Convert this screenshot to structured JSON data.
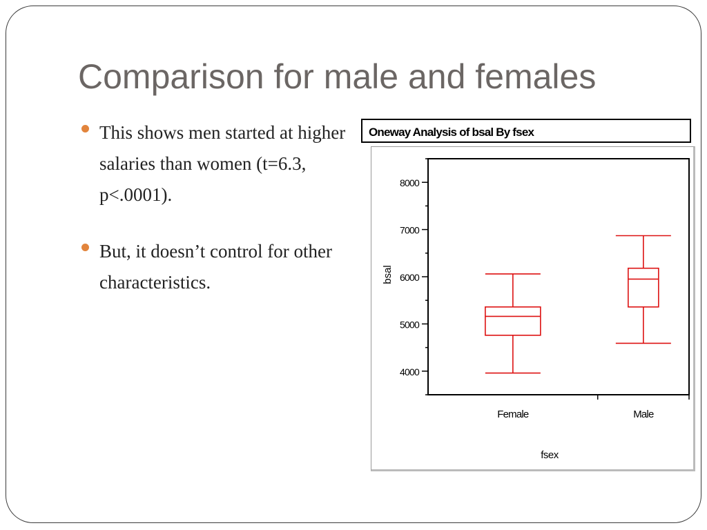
{
  "slide": {
    "title": "Comparison for male and females",
    "bullets": [
      "This shows men started at higher salaries than women (t=6.3, p<.0001).",
      "But, it doesn’t control for other characteristics."
    ],
    "colors": {
      "title": "#6b6664",
      "bullet": "#e2843c",
      "boxplot": "#dd1111"
    }
  },
  "report": {
    "header": "Oneway Analysis of bsal By fsex"
  },
  "chart_data": {
    "type": "boxplot",
    "title": "",
    "xlabel": "fsex",
    "ylabel": "bsal",
    "ylim": [
      3500,
      8500
    ],
    "yticks": [
      4000,
      5000,
      6000,
      7000,
      8000
    ],
    "categories": [
      "Female",
      "Male"
    ],
    "boxes": [
      {
        "category": "Female",
        "whisker_low": 3960,
        "q1": 4760,
        "median": 5160,
        "q3": 5360,
        "whisker_high": 6060
      },
      {
        "category": "Male",
        "whisker_low": 4590,
        "q1": 5360,
        "median": 5950,
        "q3": 6180,
        "whisker_high": 6870
      }
    ],
    "grid": false
  }
}
